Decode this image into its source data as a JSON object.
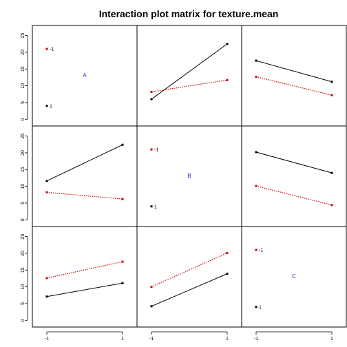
{
  "chart_data": {
    "type": "line",
    "title": "Interaction plot matrix for texture.mean",
    "factors": [
      "A",
      "B",
      "C"
    ],
    "x_levels": [
      "-1",
      "1"
    ],
    "y_ticks": [
      "0",
      "5",
      "10",
      "15",
      "20",
      "25"
    ],
    "ylim": [
      -2,
      28
    ],
    "diagonal_level_labels": [
      "-1",
      "1"
    ],
    "diagonal_level_y": [
      21,
      4
    ],
    "series_colors": [
      "#000000",
      "#cc0000"
    ],
    "grid": false,
    "panels": [
      {
        "row": 0,
        "col": 0,
        "diagonal": true,
        "label": "A"
      },
      {
        "row": 0,
        "col": 1,
        "series": [
          {
            "values": [
              6,
              22.5
            ]
          },
          {
            "values": [
              8.2,
              11.7
            ]
          }
        ]
      },
      {
        "row": 0,
        "col": 2,
        "series": [
          {
            "values": [
              17.5,
              11.2
            ]
          },
          {
            "values": [
              12.7,
              7.2
            ]
          }
        ]
      },
      {
        "row": 1,
        "col": 0,
        "series": [
          {
            "values": [
              11.6,
              22.4
            ]
          },
          {
            "values": [
              8.2,
              6.2
            ]
          }
        ]
      },
      {
        "row": 1,
        "col": 1,
        "diagonal": true,
        "label": "B"
      },
      {
        "row": 1,
        "col": 2,
        "series": [
          {
            "values": [
              20.2,
              14
            ]
          },
          {
            "values": [
              10.1,
              4.4
            ]
          }
        ]
      },
      {
        "row": 2,
        "col": 0,
        "series": [
          {
            "values": [
              7.1,
              11.1
            ]
          },
          {
            "values": [
              12.6,
              17.5
            ]
          }
        ]
      },
      {
        "row": 2,
        "col": 1,
        "series": [
          {
            "values": [
              4.2,
              13.9
            ]
          },
          {
            "values": [
              10,
              20.1
            ]
          }
        ]
      },
      {
        "row": 2,
        "col": 2,
        "diagonal": true,
        "label": "C"
      }
    ]
  }
}
